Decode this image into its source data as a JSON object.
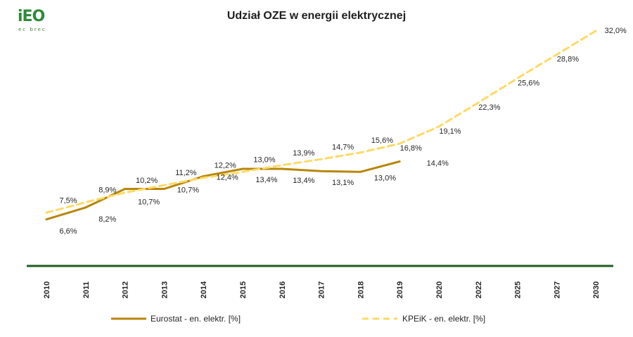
{
  "logo": {
    "text": "iEO",
    "subtext": "ec brec"
  },
  "chart_data": {
    "type": "line",
    "title": "Udział OZE w energii elektrycznej",
    "categories": [
      "2010",
      "2011",
      "2012",
      "2013",
      "2014",
      "2015",
      "2016",
      "2017",
      "2018",
      "2019",
      "2020",
      "2022",
      "2025",
      "2027",
      "2030"
    ],
    "series": [
      {
        "name": "Eurostat - en. elektr. [%]",
        "color": "#b8860b",
        "style": "solid",
        "values": [
          6.6,
          8.2,
          10.7,
          10.7,
          12.4,
          13.4,
          13.4,
          13.1,
          13.0,
          14.4,
          null,
          null,
          null,
          null,
          null
        ],
        "labels": [
          "6,6%",
          "8,2%",
          "10,7%",
          "10,7%",
          "12,4%",
          "13,4%",
          "13,4%",
          "13,1%",
          "13,0%",
          "14,4%",
          null,
          null,
          null,
          null,
          null
        ]
      },
      {
        "name": "KPEiK - en. elektr. [%]",
        "color": "#ffd966",
        "style": "dashed",
        "values": [
          7.5,
          8.9,
          10.2,
          11.2,
          12.2,
          13.0,
          13.9,
          14.7,
          15.6,
          16.8,
          19.1,
          22.3,
          25.6,
          28.8,
          32.0
        ],
        "labels": [
          "7,5%",
          "8,9%",
          "10,2%",
          "11,2%",
          "12,2%",
          "13,0%",
          "13,9%",
          "14,7%",
          "15,6%",
          "16,8%",
          "19,1%",
          "22,3%",
          "25,6%",
          "28,8%",
          "32,0%"
        ]
      }
    ],
    "legend_position": "bottom",
    "grid": false,
    "axis_color": "#1e5c1e"
  }
}
